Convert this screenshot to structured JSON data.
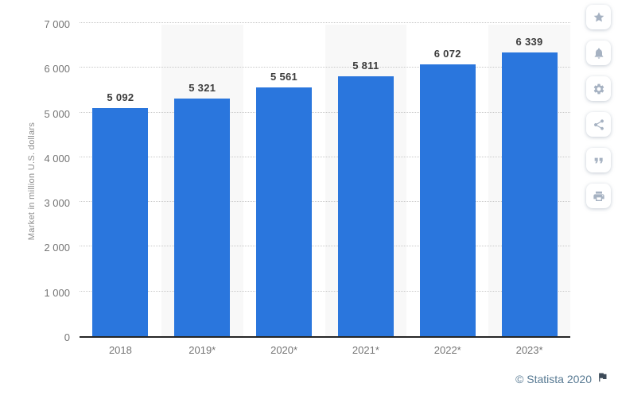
{
  "chart_data": {
    "type": "bar",
    "title": "",
    "xlabel": "",
    "ylabel": "Market in million U.S. dollars",
    "categories": [
      "2018",
      "2019*",
      "2020*",
      "2021*",
      "2022*",
      "2023*"
    ],
    "values": [
      5092,
      5321,
      5561,
      5811,
      6072,
      6339
    ],
    "value_labels": [
      "5 092",
      "5 321",
      "5 561",
      "5 811",
      "6 072",
      "6 339"
    ],
    "ylim": [
      0,
      7000
    ],
    "ytick_step": 1000,
    "ytick_labels": [
      "7 000",
      "6 000",
      "5 000",
      "4 000",
      "3 000",
      "2 000",
      "1 000",
      "0"
    ],
    "grid": "horizontal-dotted",
    "legend": "none",
    "bar_color": "#2a76dd",
    "band_color": "#f8f8f8"
  },
  "toolbar": {
    "buttons": [
      {
        "icon": "star-icon"
      },
      {
        "icon": "bell-icon"
      },
      {
        "icon": "gear-icon"
      },
      {
        "icon": "share-icon"
      },
      {
        "icon": "quote-icon"
      },
      {
        "icon": "print-icon"
      }
    ]
  },
  "footer": {
    "copyright": "© Statista 2020",
    "flag_icon": "flag-icon"
  }
}
